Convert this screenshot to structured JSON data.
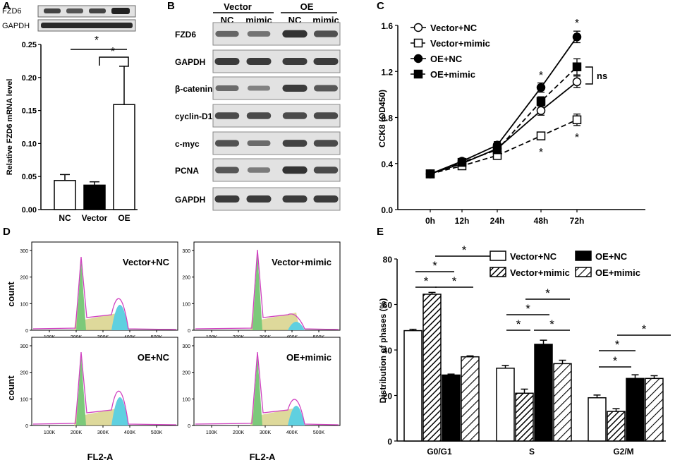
{
  "colors": {
    "line": "#000000",
    "pink": "#d040c0",
    "green": "#7cc97a",
    "yellow": "#d6cf82",
    "cyan": "#5fd0e0",
    "band": "#262626",
    "blot_bg": "#e2e2e2"
  },
  "panels": {
    "a": {
      "label": "A",
      "blot_rows": [
        "FZD6",
        "GAPDH"
      ]
    },
    "b": {
      "label": "B",
      "group_headers": [
        "Vector",
        "OE"
      ],
      "lane_labels": [
        "NC",
        "mimic",
        "NC",
        "mimic"
      ],
      "rows": [
        "FZD6",
        "GAPDH",
        "β-catenin",
        "cyclin-D1",
        "c-myc",
        "PCNA",
        "GAPDH"
      ],
      "intensity": [
        [
          0.55,
          0.45,
          0.9,
          0.7
        ],
        [
          0.85,
          0.85,
          0.85,
          0.85
        ],
        [
          0.5,
          0.35,
          0.85,
          0.65
        ],
        [
          0.75,
          0.75,
          0.75,
          0.75
        ],
        [
          0.7,
          0.5,
          0.8,
          0.75
        ],
        [
          0.65,
          0.4,
          0.9,
          0.75
        ],
        [
          0.85,
          0.85,
          0.85,
          0.85
        ]
      ]
    },
    "c": {
      "label": "C"
    },
    "d": {
      "label": "D",
      "xlabel": "FL2-A",
      "ylabel": "count",
      "subplots": [
        {
          "title": "Vector+NC"
        },
        {
          "title": "Vector+mimic"
        },
        {
          "title": "OE+NC"
        },
        {
          "title": "OE+mimic"
        }
      ],
      "y_ticks": [
        "0",
        "100",
        "200",
        "300"
      ],
      "x_ticks": [
        "100K",
        "200K",
        "300K",
        "400K",
        "500K"
      ]
    },
    "e": {
      "label": "E"
    }
  },
  "chart_data": [
    {
      "panel": "A",
      "type": "bar",
      "categories": [
        "NC",
        "Vector",
        "OE"
      ],
      "values": [
        0.044,
        0.037,
        0.159
      ],
      "errors": [
        0.009,
        0.005,
        0.058
      ],
      "fills": [
        "#ffffff",
        "#000000",
        "#ffffff"
      ],
      "ylabel": "Relative FZD6 mRNA level",
      "ylim": [
        0,
        0.25
      ],
      "yticks": [
        "0.00",
        "0.05",
        "0.10",
        "0.15",
        "0.20",
        "0.25"
      ],
      "annotations": [
        "*",
        "*"
      ]
    },
    {
      "panel": "C",
      "type": "line",
      "x": [
        "0h",
        "12h",
        "24h",
        "48h",
        "72h"
      ],
      "ylabel": "CCK8 (OD450)",
      "ylim": [
        0,
        1.6
      ],
      "yticks": [
        "0.0",
        "0.4",
        "0.8",
        "1.2",
        "1.6"
      ],
      "series": [
        {
          "name": "Vector+NC",
          "marker": "open-circle",
          "dash": false,
          "values": [
            0.31,
            0.4,
            0.53,
            0.86,
            1.11
          ],
          "errors": [
            0.02,
            0.02,
            0.03,
            0.04,
            0.05
          ]
        },
        {
          "name": "Vector+mimic",
          "marker": "open-square",
          "dash": true,
          "values": [
            0.31,
            0.38,
            0.47,
            0.64,
            0.78
          ],
          "errors": [
            0.02,
            0.02,
            0.03,
            0.03,
            0.05
          ]
        },
        {
          "name": "OE+NC",
          "marker": "filled-circle",
          "dash": false,
          "values": [
            0.31,
            0.42,
            0.56,
            1.06,
            1.5
          ],
          "errors": [
            0.02,
            0.02,
            0.03,
            0.04,
            0.05
          ]
        },
        {
          "name": "OE+mimic",
          "marker": "filled-square",
          "dash": true,
          "values": [
            0.31,
            0.41,
            0.52,
            0.94,
            1.24
          ],
          "errors": [
            0.02,
            0.02,
            0.03,
            0.04,
            0.07
          ]
        }
      ],
      "annotations": [
        "*",
        "*",
        "*",
        "ns"
      ]
    },
    {
      "panel": "E",
      "type": "bar",
      "categories": [
        "G0/G1",
        "S",
        "G2/M"
      ],
      "ylabel": "Distribution of phases (%)",
      "ylim": [
        0,
        80
      ],
      "yticks": [
        "0",
        "20",
        "40",
        "60",
        "80"
      ],
      "series": [
        {
          "name": "Vector+NC",
          "pattern": "white",
          "values": [
            48.5,
            32,
            19
          ],
          "errors": [
            0.6,
            1.2,
            1.2
          ]
        },
        {
          "name": "Vector+mimic",
          "pattern": "hatch-dense",
          "values": [
            64.5,
            21,
            13
          ],
          "errors": [
            0.8,
            1.8,
            1.2
          ]
        },
        {
          "name": "OE+NC",
          "pattern": "black",
          "values": [
            29,
            42.5,
            27.5
          ],
          "errors": [
            0.4,
            1.8,
            1.6
          ]
        },
        {
          "name": "OE+mimic",
          "pattern": "hatch-sparse",
          "values": [
            37,
            34,
            27.5
          ],
          "errors": [
            0.4,
            1.5,
            1.2
          ]
        }
      ],
      "annotations": [
        "*",
        "*",
        "*",
        "*",
        "*",
        "*",
        "*",
        "*",
        "*",
        "*",
        "*"
      ]
    }
  ]
}
